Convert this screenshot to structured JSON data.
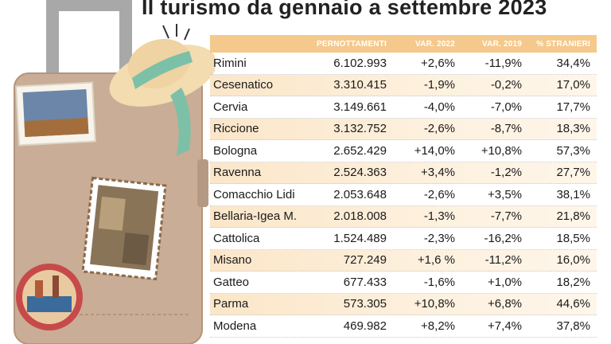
{
  "title": "Il turismo da gennaio a settembre 2023",
  "table": {
    "headers": [
      "",
      "PERNOTTAMENTI",
      "VAR. 2022",
      "VAR. 2019",
      "% STRANIERI"
    ],
    "rows": [
      {
        "city": "Rimini",
        "pernottamenti": "6.102.993",
        "var2022": "+2,6%",
        "var2019": "-11,9%",
        "stranieri": "34,4%"
      },
      {
        "city": "Cesenatico",
        "pernottamenti": "3.310.415",
        "var2022": "-1,9%",
        "var2019": "-0,2%",
        "stranieri": "17,0%"
      },
      {
        "city": "Cervia",
        "pernottamenti": "3.149.661",
        "var2022": "-4,0%",
        "var2019": "-7,0%",
        "stranieri": "17,7%"
      },
      {
        "city": "Riccione",
        "pernottamenti": "3.132.752",
        "var2022": "-2,6%",
        "var2019": "-8,7%",
        "stranieri": "18,3%"
      },
      {
        "city": "Bologna",
        "pernottamenti": "2.652.429",
        "var2022": "+14,0%",
        "var2019": "+10,8%",
        "stranieri": "57,3%"
      },
      {
        "city": "Ravenna",
        "pernottamenti": "2.524.363",
        "var2022": "+3,4%",
        "var2019": "-1,2%",
        "stranieri": "27,7%"
      },
      {
        "city": "Comacchio Lidi",
        "pernottamenti": "2.053.648",
        "var2022": "-2,6%",
        "var2019": "+3,5%",
        "stranieri": "38,1%"
      },
      {
        "city": "Bellaria-Igea M.",
        "pernottamenti": "2.018.008",
        "var2022": "-1,3%",
        "var2019": "-7,7%",
        "stranieri": "21,8%"
      },
      {
        "city": "Cattolica",
        "pernottamenti": "1.524.489",
        "var2022": "-2,3%",
        "var2019": "-16,2%",
        "stranieri": "18,5%"
      },
      {
        "city": "Misano",
        "pernottamenti": "727.249",
        "var2022": "+1,6 %",
        "var2019": "-11,2%",
        "stranieri": "16,0%"
      },
      {
        "city": "Gatteo",
        "pernottamenti": "677.433",
        "var2022": "-1,6%",
        "var2019": "+1,0%",
        "stranieri": "18,2%"
      },
      {
        "city": "Parma",
        "pernottamenti": "573.305",
        "var2022": "+10,8%",
        "var2019": "+6,8%",
        "stranieri": "44,6%"
      },
      {
        "city": "Modena",
        "pernottamenti": "469.982",
        "var2022": "+8,2%",
        "var2019": "+7,4%",
        "stranieri": "37,8%"
      }
    ]
  },
  "illustration": {
    "suitcase_color": "#c9ad96",
    "hat_color": "#f2dcb0",
    "ribbon_color": "#7cc0a8",
    "icons": [
      "suitcase-icon",
      "straw-hat-icon",
      "postage-stamp-icon",
      "travel-sticker-icon"
    ]
  }
}
